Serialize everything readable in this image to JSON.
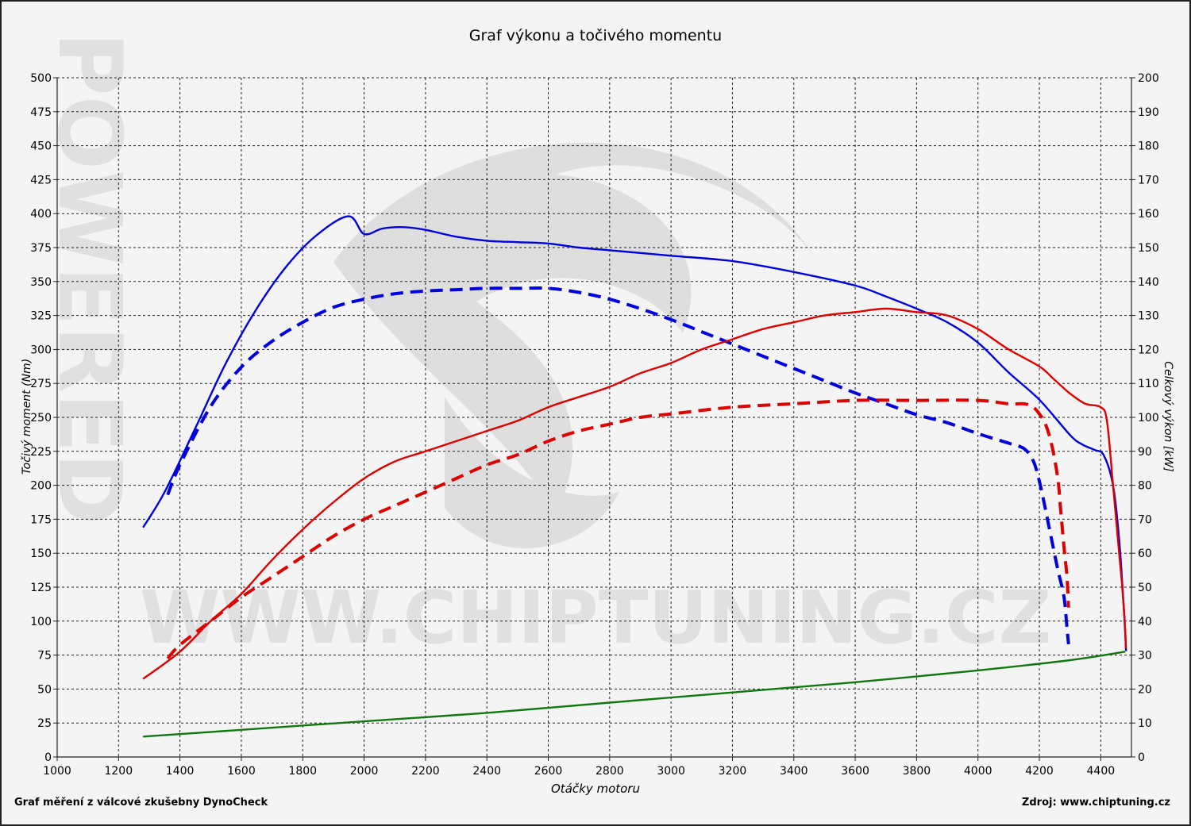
{
  "chart_data": {
    "type": "line",
    "title": "Graf výkonu a točivého momentu",
    "xlabel": "Otáčky motoru",
    "ylabel_left": "Točivý moment (Nm)",
    "ylabel_right": "Celkový výkon [kW]",
    "xlim": [
      1000,
      4500
    ],
    "ylim_left": [
      0,
      500
    ],
    "ylim_right": [
      0,
      200
    ],
    "x_ticks": [
      1000,
      1200,
      1400,
      1600,
      1800,
      2000,
      2200,
      2400,
      2600,
      2800,
      3000,
      3200,
      3400,
      3600,
      3800,
      4000,
      4200,
      4400
    ],
    "y_ticks_left": [
      0,
      25,
      50,
      75,
      100,
      125,
      150,
      175,
      200,
      225,
      250,
      275,
      300,
      325,
      350,
      375,
      400,
      425,
      450,
      475,
      500
    ],
    "y_ticks_right": [
      0,
      10,
      20,
      30,
      40,
      50,
      60,
      70,
      80,
      90,
      100,
      110,
      120,
      130,
      140,
      150,
      160,
      170,
      180,
      190,
      200
    ],
    "grid": true,
    "series": [
      {
        "axis": "left",
        "color": "#0000dd",
        "dash": "solid",
        "x": [
          1280,
          1350,
          1450,
          1550,
          1650,
          1750,
          1850,
          1950,
          2000,
          2060,
          2130,
          2200,
          2300,
          2400,
          2500,
          2600,
          2700,
          2800,
          3000,
          3200,
          3400,
          3600,
          3700,
          3800,
          3900,
          4000,
          4100,
          4200,
          4300,
          4340,
          4380,
          4410,
          4440,
          4460,
          4475,
          4480,
          4482,
          4483
        ],
        "y": [
          169,
          195,
          242,
          290,
          330,
          362,
          385,
          398,
          385,
          389,
          390,
          388,
          383,
          380,
          379,
          378,
          375,
          373,
          369,
          365,
          357,
          347,
          339,
          330,
          320,
          305,
          283,
          263,
          237,
          230,
          226,
          222,
          200,
          160,
          110,
          90,
          80,
          78
        ]
      },
      {
        "axis": "left",
        "color": "#0000dd",
        "dash": "dashed",
        "x": [
          1360,
          1400,
          1500,
          1600,
          1700,
          1800,
          1900,
          2000,
          2100,
          2200,
          2300,
          2400,
          2500,
          2600,
          2700,
          2800,
          2900,
          3000,
          3100,
          3200,
          3300,
          3400,
          3500,
          3600,
          3700,
          3800,
          3900,
          4000,
          4100,
          4150,
          4180,
          4200,
          4220,
          4240,
          4260,
          4280,
          4290,
          4295
        ],
        "y": [
          193,
          215,
          258,
          287,
          306,
          320,
          331,
          337,
          341,
          343,
          344,
          345,
          345,
          345,
          342,
          337,
          330,
          322,
          313,
          304,
          295,
          286,
          277,
          268,
          260,
          252,
          246,
          238,
          231,
          227,
          218,
          203,
          182,
          160,
          138,
          118,
          95,
          83
        ]
      },
      {
        "axis": "right",
        "color": "#dd0000",
        "dash": "solid",
        "x": [
          1280,
          1400,
          1500,
          1600,
          1700,
          1800,
          1900,
          2000,
          2100,
          2200,
          2300,
          2400,
          2500,
          2600,
          2700,
          2800,
          2900,
          3000,
          3100,
          3200,
          3300,
          3400,
          3500,
          3600,
          3700,
          3800,
          3900,
          4000,
          4100,
          4200,
          4250,
          4300,
          4350,
          4400,
          4420,
          4440,
          4460,
          4470,
          4478,
          4482
        ],
        "y": [
          23,
          31,
          40,
          48,
          58,
          67,
          75,
          82,
          87,
          90,
          93,
          96,
          99,
          103,
          106,
          109,
          113,
          116,
          120,
          123,
          126,
          128,
          130,
          131,
          132,
          131,
          130,
          126,
          120,
          115,
          111,
          107,
          104,
          103,
          99,
          80,
          60,
          50,
          40,
          32
        ]
      },
      {
        "axis": "right",
        "color": "#dd0000",
        "dash": "dashed",
        "x": [
          1360,
          1400,
          1500,
          1600,
          1700,
          1800,
          1900,
          2000,
          2100,
          2200,
          2300,
          2400,
          2500,
          2600,
          2700,
          2800,
          2900,
          3000,
          3200,
          3400,
          3600,
          3800,
          4000,
          4100,
          4150,
          4180,
          4200,
          4220,
          4240,
          4260,
          4270,
          4280,
          4290,
          4295
        ],
        "y": [
          29,
          33,
          40,
          47,
          53,
          59,
          65,
          70,
          74,
          78,
          82,
          86,
          89,
          93,
          96,
          98,
          100,
          101,
          103,
          104,
          105,
          105,
          105,
          104,
          104,
          103,
          101,
          98,
          92,
          82,
          72,
          62,
          53,
          44
        ]
      },
      {
        "axis": "right",
        "color": "#117711",
        "dash": "solid",
        "x": [
          1280,
          1600,
          2000,
          2400,
          2800,
          3200,
          3600,
          4000,
          4300,
          4480
        ],
        "y": [
          6,
          8,
          10.5,
          13,
          16,
          19,
          22,
          25.5,
          28.5,
          31
        ]
      }
    ]
  },
  "footer": {
    "left_text": "Graf měření z válcové zkušebny DynoCheck",
    "right_text": "Zdroj: www.chiptuning.cz"
  },
  "watermark": {
    "text_url": "WWW.CHIPTUNING.CZ",
    "text_side": "POWERED",
    "logo": "chiptuning-cobra-logo"
  }
}
